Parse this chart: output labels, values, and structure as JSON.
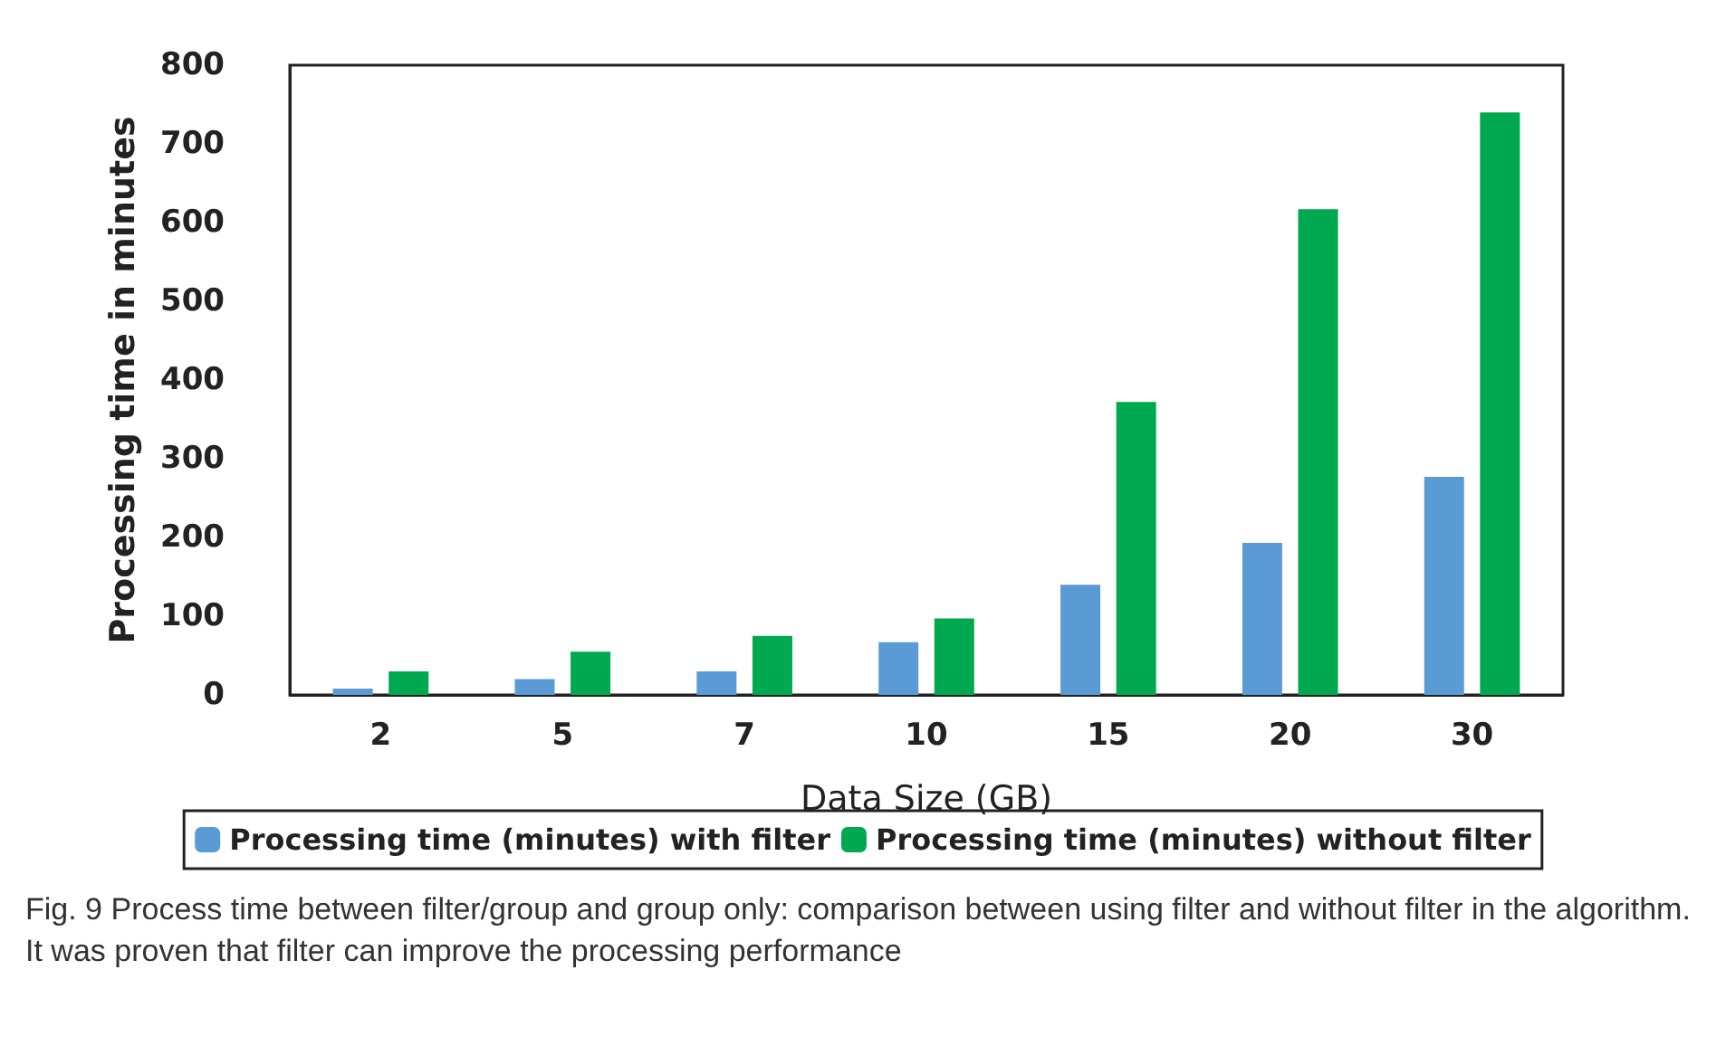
{
  "chart_data": {
    "type": "bar",
    "xlabel": "Data Size (GB)",
    "ylabel": "Processing time in minutes",
    "categories": [
      "2",
      "5",
      "7",
      "10",
      "15",
      "20",
      "30"
    ],
    "series": [
      {
        "name": "Processing time (minutes) with filter",
        "color": "#5b9bd5",
        "values": [
          8,
          20,
          30,
          67,
          140,
          193,
          277
        ]
      },
      {
        "name": "Processing time (minutes) without filter",
        "color": "#00a84f",
        "values": [
          30,
          55,
          75,
          97,
          372,
          617,
          740
        ]
      }
    ],
    "ylim": [
      0,
      800
    ],
    "yticks": [
      0,
      100,
      200,
      300,
      400,
      500,
      600,
      700,
      800
    ],
    "grid": false,
    "legend": "bottom",
    "annotations": [
      "Fig. 9  Process time between filter/group and group only: comparison between using filter and without filter in the algorithm. It was proven that filter can improve the processing performance"
    ]
  }
}
